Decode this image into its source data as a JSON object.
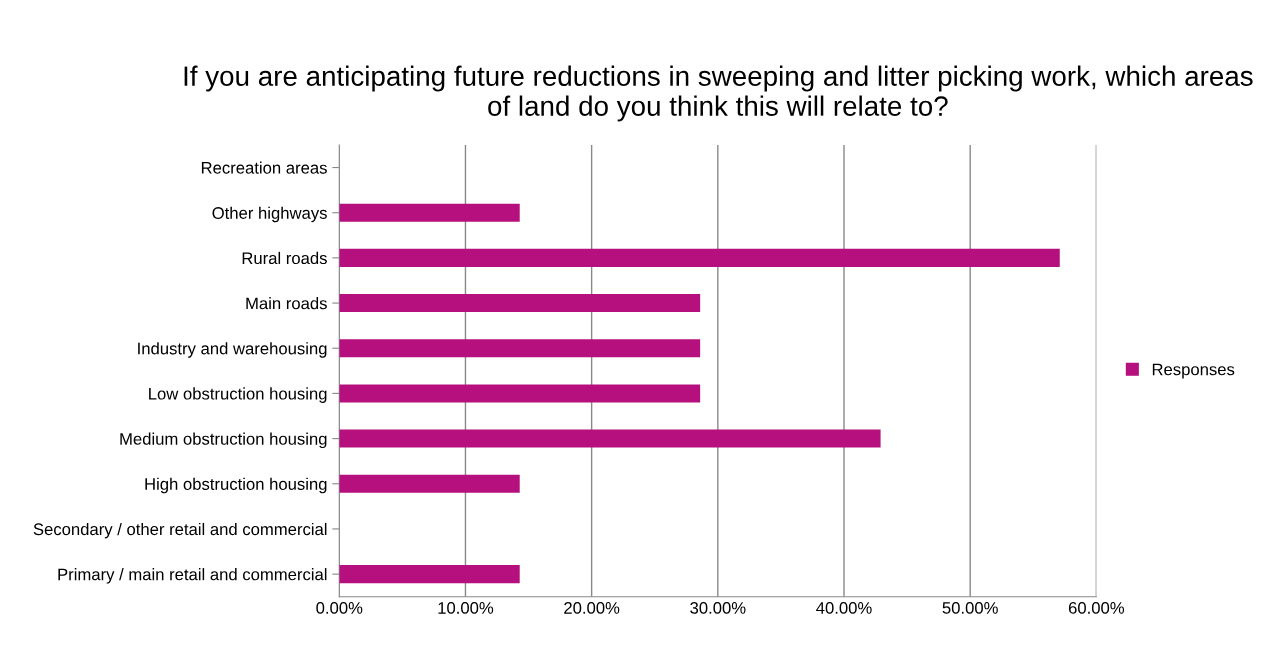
{
  "chart_data": {
    "type": "bar",
    "orientation": "horizontal",
    "title": "If you are anticipating future reductions in sweeping and litter picking work, which areas of land do you think this will relate to?",
    "categories": [
      "Recreation areas",
      "Other highways",
      "Rural roads",
      "Main roads",
      "Industry and warehousing",
      "Low obstruction housing",
      "Medium obstruction housing",
      "High obstruction housing",
      "Secondary / other retail and commercial",
      "Primary / main retail and commercial"
    ],
    "series": [
      {
        "name": "Responses",
        "color": "#b5107e",
        "values": [
          0,
          14.3,
          57.1,
          28.6,
          28.6,
          28.6,
          42.9,
          14.3,
          0,
          14.3
        ]
      }
    ],
    "xlim": [
      0,
      60
    ],
    "xticks": [
      {
        "value": 0,
        "label": "0.00%"
      },
      {
        "value": 10,
        "label": "10.00%"
      },
      {
        "value": 20,
        "label": "20.00%"
      },
      {
        "value": 30,
        "label": "30.00%"
      },
      {
        "value": 40,
        "label": "40.00%"
      },
      {
        "value": 50,
        "label": "50.00%"
      },
      {
        "value": 60,
        "label": "60.00%"
      }
    ],
    "grid": "x",
    "legend": "right"
  }
}
